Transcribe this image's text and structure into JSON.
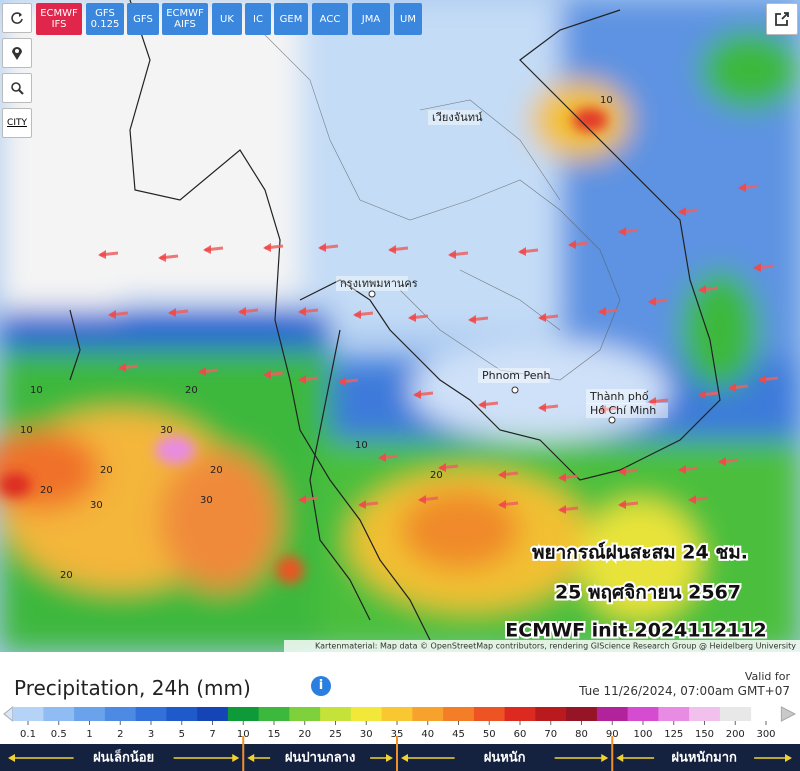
{
  "models": [
    [
      "ECMWF",
      "IFS"
    ],
    [
      "GFS",
      "0.125"
    ],
    [
      "GFS"
    ],
    [
      "ECMWF",
      "AIFS"
    ],
    [
      "UK"
    ],
    [
      "IC"
    ],
    [
      "GEM"
    ],
    [
      "ACC"
    ],
    [
      "JMA"
    ],
    [
      "UM"
    ]
  ],
  "tools": {
    "city": "CITY"
  },
  "places": {
    "vientiane": "เวียงจันทน์",
    "bangkok": "กรุงเทพมหานคร",
    "phnom_penh": "Phnom Penh",
    "hcmc": [
      "Thành phố",
      "Hồ Chí Minh"
    ]
  },
  "contour_labels": [
    "10",
    "20",
    "30",
    "20",
    "30",
    "20",
    "10",
    "20",
    "30",
    "20",
    "10",
    "20",
    "10"
  ],
  "overlay": [
    "พยากรณ์ฝนสะสม 24 ชม.",
    "25 พฤศจิกายน 2567",
    "ECMWF init.2024112112"
  ],
  "attribution": "Kartenmaterial: Map data © OpenStreetMap contributors, rendering GIScience Research Group @ Heidelberg University",
  "legend": {
    "title": "Precipitation, 24h (mm)",
    "info": "i",
    "valid_label": "Valid for",
    "valid_time": "Tue 11/26/2024, 07:00am GMT+07",
    "scale": [
      "0.1",
      "0.5",
      "1",
      "2",
      "3",
      "5",
      "7",
      "10",
      "15",
      "20",
      "25",
      "30",
      "35",
      "40",
      "45",
      "50",
      "60",
      "70",
      "80",
      "90",
      "100",
      "125",
      "150",
      "200",
      "300"
    ],
    "colors": [
      "#d6e6fb",
      "#b5d3f7",
      "#8fbcf2",
      "#6aa3ec",
      "#4d8ae4",
      "#3271d9",
      "#1f5acb",
      "#1545b5",
      "#0f9a3a",
      "#3cb83c",
      "#7fd13b",
      "#c4e23a",
      "#f2e83a",
      "#f8c732",
      "#f7a22c",
      "#f47e27",
      "#ee5324",
      "#dc2a20",
      "#b81a1d",
      "#951426",
      "#b2239b",
      "#d54cd0",
      "#e88be2",
      "#f1c0ed",
      "#e8e8e8",
      "#c9c9c9"
    ],
    "categories": [
      "ฝนเล็กน้อย",
      "ฝนปานกลาง",
      "ฝนหนัก",
      "ฝนหนักมาก"
    ]
  }
}
